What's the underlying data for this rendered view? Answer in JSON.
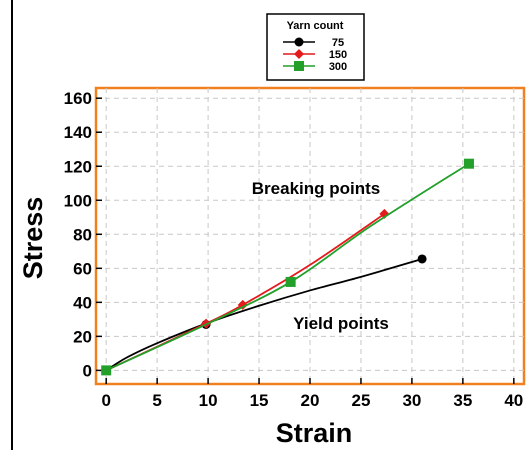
{
  "chart_data": {
    "type": "line",
    "xlabel": "Strain",
    "ylabel": "Stress",
    "xlim": [
      -1,
      41
    ],
    "ylim": [
      -8,
      166
    ],
    "xticks": [
      0,
      5,
      10,
      15,
      20,
      25,
      30,
      35,
      40
    ],
    "yticks": [
      0,
      20,
      40,
      60,
      80,
      100,
      120,
      140,
      160
    ],
    "grid": true,
    "legend": {
      "title": "Yarn count",
      "placement": "top-center"
    },
    "annotations": [
      "Breaking points",
      "Yield points"
    ],
    "frame_color": "#f08020",
    "series": [
      {
        "name": "75",
        "color": "#000000",
        "marker": "circle",
        "x": [
          0,
          2,
          5,
          10,
          15,
          20,
          25,
          31
        ],
        "y": [
          0,
          7.5,
          16,
          28,
          38,
          47,
          55,
          65.5
        ],
        "marker_points": [
          [
            0,
            0
          ],
          [
            9.8,
            27
          ],
          [
            31,
            65.5
          ]
        ]
      },
      {
        "name": "150",
        "color": "#e41a1c",
        "marker": "diamond",
        "x": [
          0,
          9.8,
          13.4,
          20,
          27.3
        ],
        "y": [
          0,
          27.5,
          38.5,
          62,
          92
        ],
        "marker_points": [
          [
            0,
            0
          ],
          [
            9.8,
            27.5
          ],
          [
            13.4,
            38.5
          ],
          [
            27.3,
            92
          ]
        ]
      },
      {
        "name": "300",
        "color": "#22a02a",
        "marker": "square",
        "x": [
          0,
          9.8,
          18.1,
          26,
          35.6
        ],
        "y": [
          0,
          27,
          52,
          85,
          121.5
        ],
        "marker_points": [
          [
            0,
            0
          ],
          [
            18.1,
            52
          ],
          [
            35.6,
            121.5
          ]
        ]
      }
    ]
  }
}
